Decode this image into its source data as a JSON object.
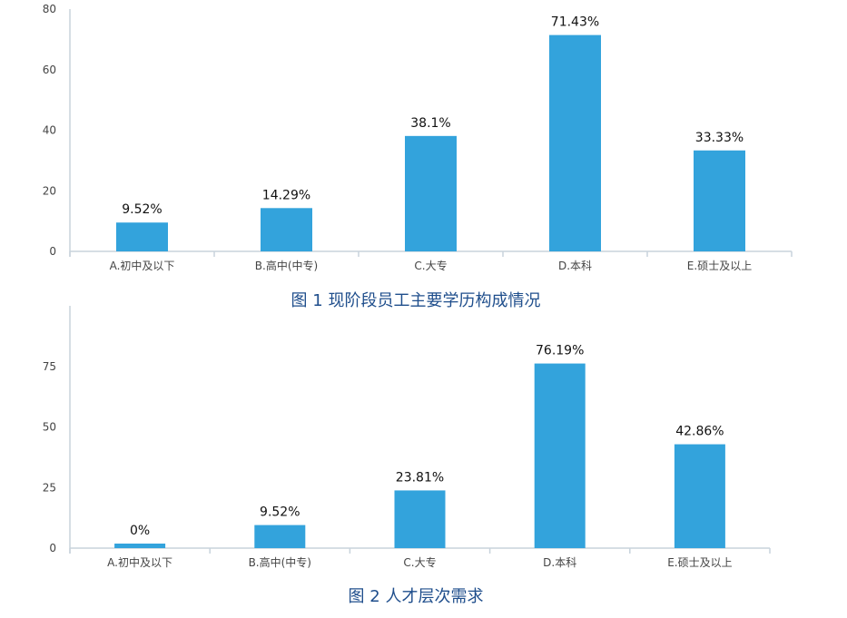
{
  "colors": {
    "bar": "#33a3dc",
    "caption": "#1f4e8c",
    "axis": "#c8d3dc"
  },
  "chart_data": [
    {
      "type": "bar",
      "title": "图 1  现阶段员工主要学历构成情况",
      "categories": [
        "A.初中及以下",
        "B.高中(中专)",
        "C.大专",
        "D.本科",
        "E.硕士及以上"
      ],
      "values": [
        9.52,
        14.29,
        38.1,
        71.43,
        33.33
      ],
      "value_labels": [
        "9.52%",
        "14.29%",
        "38.1%",
        "71.43%",
        "33.33%"
      ],
      "yticks": [
        "0",
        "20",
        "40",
        "60",
        "80"
      ],
      "ylim": [
        0,
        80
      ],
      "grid": false,
      "legend": "none"
    },
    {
      "type": "bar",
      "title": "图 2  人才层次需求",
      "categories": [
        "A.初中及以下",
        "B.高中(中专)",
        "C.大专",
        "D.本科",
        "E.硕士及以上"
      ],
      "values": [
        0,
        9.52,
        23.81,
        76.19,
        42.86
      ],
      "value_labels": [
        "0%",
        "9.52%",
        "23.81%",
        "76.19%",
        "42.86%"
      ],
      "yticks": [
        "0",
        "25",
        "50",
        "75"
      ],
      "ylim": [
        0,
        100
      ],
      "grid": false,
      "legend": "none"
    }
  ]
}
